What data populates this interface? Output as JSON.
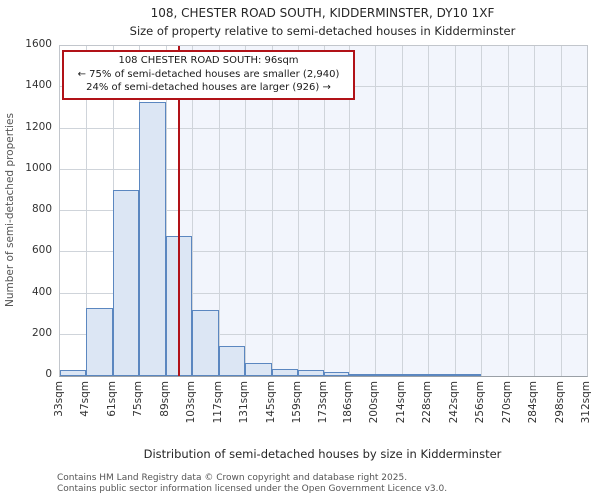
{
  "page": {
    "title": "108, CHESTER ROAD SOUTH, KIDDERMINSTER, DY10 1XF",
    "subtitle": "Size of property relative to semi-detached houses in Kidderminster"
  },
  "annotation": {
    "line1": "108 CHESTER ROAD SOUTH: 96sqm",
    "line2": "← 75% of semi-detached houses are smaller (2,940)",
    "line3": "24% of semi-detached houses are larger (926) →"
  },
  "footer": {
    "line1": "Contains HM Land Registry data © Crown copyright and database right 2025.",
    "line2": "Contains public sector information licensed under the Open Government Licence v3.0."
  },
  "chart_data": {
    "type": "bar",
    "title": "108, CHESTER ROAD SOUTH, KIDDERMINSTER, DY10 1XF",
    "subtitle": "Size of property relative to semi-detached houses in Kidderminster",
    "xlabel": "Distribution of semi-detached houses by size in Kidderminster",
    "ylabel": "Number of semi-detached properties",
    "ylim": [
      0,
      1600
    ],
    "yticks": [
      0,
      200,
      400,
      600,
      800,
      1000,
      1200,
      1400,
      1600
    ],
    "bin_edges": [
      33,
      47,
      61,
      75,
      89,
      103,
      117,
      131,
      145,
      159,
      173,
      186,
      200,
      214,
      228,
      242,
      256,
      270,
      284,
      298,
      312
    ],
    "categories": [
      "33sqm",
      "47sqm",
      "61sqm",
      "75sqm",
      "89sqm",
      "103sqm",
      "117sqm",
      "131sqm",
      "145sqm",
      "159sqm",
      "173sqm",
      "186sqm",
      "200sqm",
      "214sqm",
      "228sqm",
      "242sqm",
      "256sqm",
      "270sqm",
      "284sqm",
      "298sqm",
      "312sqm"
    ],
    "values": [
      30,
      330,
      900,
      1330,
      680,
      320,
      145,
      65,
      35,
      30,
      20,
      12,
      6,
      10,
      5,
      3,
      0,
      0,
      0,
      0
    ],
    "marker": {
      "value": 96,
      "label": "96sqm"
    },
    "grid": true,
    "legend": false,
    "colors": {
      "bar_fill": "#dce6f4",
      "bar_edge": "#5b87c0",
      "marker_line": "#b11218",
      "shade_right": "#f2f5fc",
      "grid_line": "#cfd4da"
    }
  }
}
